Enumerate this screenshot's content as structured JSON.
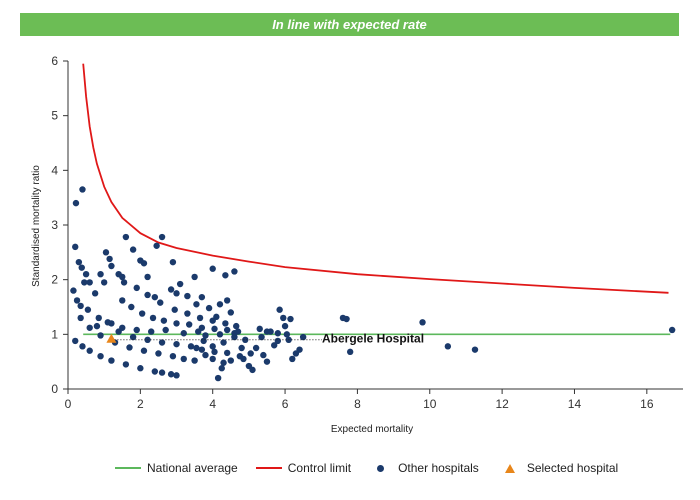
{
  "banner": {
    "text": "In line with expected rate",
    "color": "#6cbd55"
  },
  "chart_data": {
    "type": "scatter",
    "xlabel": "Expected mortality",
    "ylabel": "Standardised mortality ratio",
    "xlim": [
      0,
      17
    ],
    "ylim": [
      0,
      6
    ],
    "x_ticks": [
      0,
      2,
      4,
      6,
      8,
      10,
      12,
      14,
      16
    ],
    "y_ticks": [
      0,
      1,
      2,
      3,
      4,
      5,
      6
    ],
    "grid": false,
    "legend_position": "bottom",
    "legend": [
      {
        "label": "National average",
        "kind": "line",
        "color": "#5cb85c"
      },
      {
        "label": "Control limit",
        "kind": "line",
        "color": "#e01818"
      },
      {
        "label": "Other hospitals",
        "kind": "dot",
        "color": "#1b3a6b"
      },
      {
        "label": "Selected hospital",
        "kind": "triangle",
        "color": "#e8861a"
      }
    ],
    "national_average": 1,
    "control_limit_series": {
      "name": "Control limit",
      "x": [
        0.42,
        0.5,
        0.6,
        0.7,
        0.8,
        1.0,
        1.2,
        1.5,
        2,
        2.5,
        3,
        4,
        5,
        6,
        8,
        10,
        12,
        14,
        16.6
      ],
      "y": [
        5.95,
        5.35,
        4.8,
        4.42,
        4.12,
        3.7,
        3.42,
        3.13,
        2.85,
        2.68,
        2.58,
        2.44,
        2.33,
        2.23,
        2.1,
        2.01,
        1.93,
        1.85,
        1.76
      ]
    },
    "selected_hospital": {
      "name": "Abergele Hospital",
      "x": 1.2,
      "y": 0.92
    },
    "other_hospitals": [
      [
        0.15,
        1.8
      ],
      [
        0.22,
        3.4
      ],
      [
        0.4,
        3.65
      ],
      [
        0.2,
        2.6
      ],
      [
        0.3,
        2.32
      ],
      [
        0.38,
        2.22
      ],
      [
        0.5,
        2.1
      ],
      [
        0.6,
        1.95
      ],
      [
        0.45,
        1.95
      ],
      [
        0.25,
        1.62
      ],
      [
        0.35,
        1.52
      ],
      [
        0.75,
        1.75
      ],
      [
        0.9,
        2.1
      ],
      [
        1.05,
        2.5
      ],
      [
        1.15,
        2.38
      ],
      [
        1.2,
        2.25
      ],
      [
        1.0,
        1.95
      ],
      [
        1.4,
        2.1
      ],
      [
        1.5,
        2.05
      ],
      [
        1.6,
        2.78
      ],
      [
        1.8,
        2.55
      ],
      [
        1.55,
        1.95
      ],
      [
        2.0,
        2.35
      ],
      [
        2.1,
        2.3
      ],
      [
        2.45,
        2.62
      ],
      [
        2.6,
        2.78
      ],
      [
        2.9,
        2.32
      ],
      [
        2.2,
        2.05
      ],
      [
        3.1,
        1.92
      ],
      [
        3.5,
        2.05
      ],
      [
        4.0,
        2.2
      ],
      [
        4.6,
        2.15
      ],
      [
        4.35,
        2.08
      ],
      [
        2.85,
        1.82
      ],
      [
        3.0,
        1.75
      ],
      [
        3.3,
        1.7
      ],
      [
        3.7,
        1.68
      ],
      [
        4.4,
        1.62
      ],
      [
        4.2,
        1.55
      ],
      [
        2.4,
        1.68
      ],
      [
        3.55,
        1.55
      ],
      [
        3.9,
        1.48
      ],
      [
        4.5,
        1.4
      ],
      [
        4.1,
        1.32
      ],
      [
        0.8,
        1.15
      ],
      [
        1.2,
        1.2
      ],
      [
        1.5,
        1.12
      ],
      [
        1.9,
        1.08
      ],
      [
        2.3,
        1.05
      ],
      [
        2.7,
        1.08
      ],
      [
        3.2,
        1.02
      ],
      [
        3.6,
        1.05
      ],
      [
        3.8,
        0.98
      ],
      [
        4.2,
        1.0
      ],
      [
        4.6,
        1.02
      ],
      [
        4.9,
        0.9
      ],
      [
        5.2,
        0.75
      ],
      [
        5.5,
        1.05
      ],
      [
        5.3,
        1.1
      ],
      [
        5.6,
        1.05
      ],
      [
        5.8,
        1.02
      ],
      [
        5.85,
        1.45
      ],
      [
        5.95,
        1.3
      ],
      [
        6.15,
        1.28
      ],
      [
        6.0,
        1.15
      ],
      [
        6.1,
        0.9
      ],
      [
        6.3,
        0.65
      ],
      [
        6.5,
        0.95
      ],
      [
        6.4,
        0.72
      ],
      [
        6.2,
        0.55
      ],
      [
        5.7,
        0.8
      ],
      [
        5.4,
        0.62
      ],
      [
        5.0,
        0.42
      ],
      [
        5.1,
        0.35
      ],
      [
        4.85,
        0.55
      ],
      [
        4.5,
        0.52
      ],
      [
        4.3,
        0.48
      ],
      [
        4.0,
        0.55
      ],
      [
        3.8,
        0.62
      ],
      [
        3.55,
        0.75
      ],
      [
        4.25,
        0.38
      ],
      [
        4.15,
        0.2
      ],
      [
        7.6,
        1.3
      ],
      [
        7.7,
        1.28
      ],
      [
        7.8,
        0.68
      ],
      [
        9.8,
        1.22
      ],
      [
        10.5,
        0.78
      ],
      [
        11.25,
        0.72
      ],
      [
        16.7,
        1.08
      ],
      [
        0.2,
        0.88
      ],
      [
        0.4,
        0.78
      ],
      [
        0.6,
        0.7
      ],
      [
        0.9,
        0.6
      ],
      [
        1.2,
        0.52
      ],
      [
        1.6,
        0.45
      ],
      [
        2.0,
        0.38
      ],
      [
        2.4,
        0.32
      ],
      [
        2.85,
        0.27
      ],
      [
        3.0,
        0.25
      ],
      [
        2.6,
        0.3
      ],
      [
        0.35,
        1.3
      ],
      [
        0.6,
        1.12
      ],
      [
        0.9,
        0.98
      ],
      [
        1.3,
        0.85
      ],
      [
        1.7,
        0.76
      ],
      [
        2.1,
        0.7
      ],
      [
        2.5,
        0.65
      ],
      [
        2.9,
        0.6
      ],
      [
        3.2,
        0.55
      ],
      [
        3.5,
        0.52
      ],
      [
        0.55,
        1.45
      ],
      [
        0.85,
        1.3
      ],
      [
        1.1,
        1.22
      ],
      [
        1.4,
        1.05
      ],
      [
        1.8,
        0.95
      ],
      [
        2.2,
        0.9
      ],
      [
        2.6,
        0.85
      ],
      [
        3.0,
        0.82
      ],
      [
        3.4,
        0.78
      ],
      [
        3.7,
        0.72
      ],
      [
        4.05,
        0.68
      ],
      [
        4.4,
        0.66
      ],
      [
        4.75,
        0.6
      ],
      [
        1.5,
        1.62
      ],
      [
        1.75,
        1.5
      ],
      [
        2.05,
        1.38
      ],
      [
        2.35,
        1.3
      ],
      [
        2.65,
        1.25
      ],
      [
        3.0,
        1.2
      ],
      [
        3.35,
        1.18
      ],
      [
        3.7,
        1.12
      ],
      [
        4.05,
        1.1
      ],
      [
        4.4,
        1.08
      ],
      [
        4.7,
        1.05
      ],
      [
        1.9,
        1.85
      ],
      [
        2.2,
        1.72
      ],
      [
        2.55,
        1.58
      ],
      [
        2.95,
        1.45
      ],
      [
        3.3,
        1.38
      ],
      [
        3.65,
        1.3
      ],
      [
        4.0,
        1.25
      ],
      [
        4.35,
        1.2
      ],
      [
        4.65,
        1.15
      ],
      [
        4.6,
        0.95
      ],
      [
        4.3,
        0.85
      ],
      [
        4.0,
        0.78
      ],
      [
        3.75,
        0.88
      ],
      [
        4.8,
        0.75
      ],
      [
        5.05,
        0.65
      ],
      [
        5.5,
        0.5
      ],
      [
        5.8,
        0.88
      ],
      [
        6.05,
        1.0
      ],
      [
        5.35,
        0.95
      ]
    ]
  }
}
